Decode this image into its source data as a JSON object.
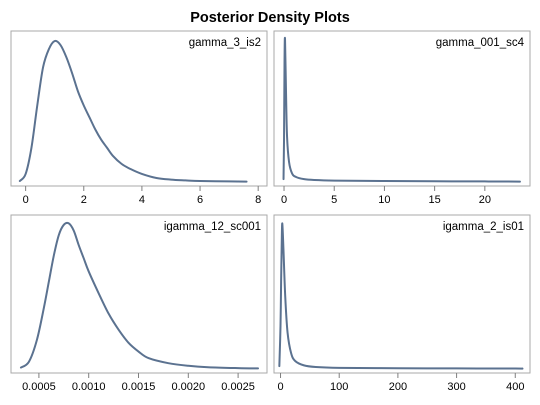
{
  "title": "Posterior Density Plots",
  "colors": {
    "line": "#5b7290",
    "frame": "#a9a9a9",
    "background": "#ffffff"
  },
  "chart_data": [
    {
      "type": "line",
      "series": [
        {
          "name": "gamma_3_is2",
          "x": [
            -0.2,
            0,
            0.2,
            0.4,
            0.6,
            0.8,
            1.0,
            1.2,
            1.4,
            1.6,
            1.8,
            2.0,
            2.2,
            2.4,
            2.6,
            2.8,
            3.0,
            3.3,
            3.6,
            4.0,
            4.5,
            5.0,
            5.5,
            6.0,
            7.0,
            7.6
          ],
          "y": [
            0.005,
            0.04,
            0.17,
            0.38,
            0.57,
            0.66,
            0.7,
            0.68,
            0.62,
            0.54,
            0.45,
            0.38,
            0.32,
            0.26,
            0.21,
            0.17,
            0.13,
            0.09,
            0.065,
            0.04,
            0.02,
            0.012,
            0.008,
            0.005,
            0.003,
            0.002
          ]
        }
      ],
      "xticks": [
        0,
        2,
        4,
        6,
        8
      ],
      "xlim": [
        -0.4,
        8.2
      ],
      "ylim": [
        0,
        0.73
      ]
    },
    {
      "type": "line",
      "series": [
        {
          "name": "gamma_001_sc4",
          "x": [
            -0.05,
            0.0,
            0.05,
            0.1,
            0.2,
            0.3,
            0.5,
            0.8,
            1.2,
            2,
            3,
            5,
            10,
            15,
            20,
            23.5
          ],
          "y": [
            0.02,
            0.3,
            0.85,
            1.0,
            0.62,
            0.32,
            0.14,
            0.06,
            0.035,
            0.02,
            0.014,
            0.01,
            0.007,
            0.005,
            0.004,
            0.003
          ]
        }
      ],
      "xticks": [
        0,
        5,
        10,
        15,
        20
      ],
      "xlim": [
        -0.7,
        24.2
      ],
      "ylim": [
        0,
        1.03
      ]
    },
    {
      "type": "line",
      "series": [
        {
          "name": "igamma_12_sc001",
          "x": [
            0.00032,
            0.0004,
            0.00048,
            0.00055,
            0.0006,
            0.00065,
            0.0007,
            0.00075,
            0.0008,
            0.00085,
            0.0009,
            0.00095,
            0.001,
            0.0011,
            0.0012,
            0.0013,
            0.0014,
            0.0015,
            0.0016,
            0.0018,
            0.002,
            0.0022,
            0.0025,
            0.0027
          ],
          "y": [
            0.01,
            0.05,
            0.2,
            0.42,
            0.6,
            0.78,
            0.92,
            0.99,
            1.0,
            0.95,
            0.85,
            0.76,
            0.67,
            0.52,
            0.38,
            0.27,
            0.18,
            0.12,
            0.075,
            0.04,
            0.022,
            0.012,
            0.006,
            0.004
          ]
        }
      ],
      "xticks": [
        0.0005,
        0.001,
        0.0015,
        0.002,
        0.0025
      ],
      "xtick_labels": [
        "0.0005",
        "0.0010",
        "0.0015",
        "0.0020",
        "0.0025"
      ],
      "xlim": [
        0.00025,
        0.00276
      ],
      "ylim": [
        0,
        1.03
      ]
    },
    {
      "type": "line",
      "series": [
        {
          "name": "igamma_2_is01",
          "x": [
            -2,
            0,
            1,
            2,
            3,
            5,
            8,
            12,
            18,
            25,
            40,
            60,
            100,
            200,
            300,
            400,
            412
          ],
          "y": [
            0.02,
            0.3,
            0.6,
            0.85,
            1.0,
            0.82,
            0.5,
            0.25,
            0.11,
            0.055,
            0.025,
            0.014,
            0.008,
            0.005,
            0.004,
            0.003,
            0.003
          ]
        }
      ],
      "xticks": [
        0,
        100,
        200,
        300,
        400
      ],
      "xlim": [
        -6,
        420
      ],
      "ylim": [
        0,
        1.03
      ]
    }
  ]
}
